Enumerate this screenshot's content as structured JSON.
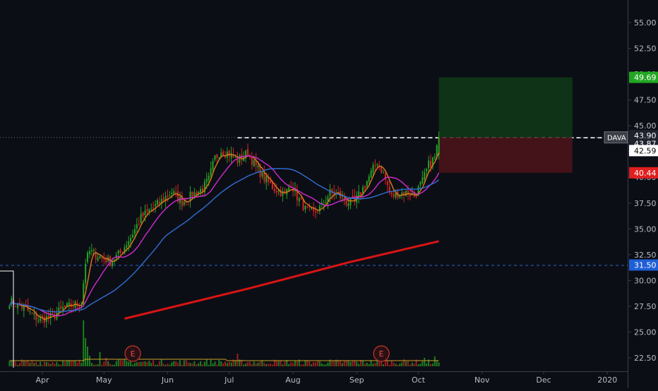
{
  "chart_data": {
    "type": "candlestick",
    "ticker": "DAVA",
    "x_axis": {
      "months": [
        {
          "label": "Apr",
          "day": 0
        },
        {
          "label": "May",
          "day": 30
        },
        {
          "label": "Jun",
          "day": 61
        },
        {
          "label": "Jul",
          "day": 91
        },
        {
          "label": "Aug",
          "day": 122
        },
        {
          "label": "Sep",
          "day": 153
        },
        {
          "label": "Oct",
          "day": 183
        },
        {
          "label": "Nov",
          "day": 214
        },
        {
          "label": "Dec",
          "day": 244
        },
        {
          "label": "2020",
          "day": 275
        }
      ]
    },
    "y_axis": {
      "ylim": [
        21.0,
        57.5
      ],
      "ticks": [
        "55.00",
        "52.50",
        "50.00",
        "47.50",
        "45.00",
        "42.50",
        "40.00",
        "37.50",
        "35.00",
        "32.50",
        "30.00",
        "27.50",
        "25.00",
        "22.50"
      ],
      "grid": false
    },
    "price_labels": [
      {
        "text": "49.69",
        "value": 49.69,
        "color": "#22a722"
      },
      {
        "text": "43.90",
        "value": 43.9,
        "color": "#1f232d"
      },
      {
        "text": "43.87",
        "value": 43.87,
        "color": "#1f232d"
      },
      {
        "text": "42.59",
        "value": 42.59,
        "color": "#ffffff"
      },
      {
        "text": "40.44",
        "value": 40.44,
        "color": "#e01f1f"
      },
      {
        "text": "31.50",
        "value": 31.5,
        "color": "#1f5fd6"
      }
    ],
    "ticker_tag": "DAVA",
    "position_box": {
      "entry": 43.87,
      "target": 49.69,
      "stop": 40.44,
      "start_day": 193,
      "end_day": 258
    },
    "horizontal_levels": [
      {
        "value": 43.87,
        "style": "dashed",
        "color": "#ffffff",
        "start_day": 95
      },
      {
        "value": 31.5,
        "style": "dashed",
        "color": "#2a62d0"
      },
      {
        "value": 43.9,
        "style": "dotted",
        "color": "#6b6f78"
      }
    ],
    "earnings_markers": [
      {
        "day": 44,
        "text": "E"
      },
      {
        "day": 165,
        "text": "E"
      }
    ],
    "earnings_label": "E",
    "series": [
      {
        "kind": "ma",
        "color": "#d97a1c",
        "ma_period": 5
      },
      {
        "kind": "ma",
        "color": "#d22bd2",
        "ma_period": 15
      },
      {
        "kind": "ma",
        "color": "#2e6fd6",
        "ma_period": 40
      },
      {
        "kind": "line",
        "color": "#d91414",
        "points": [
          [
            40,
            26.3
          ],
          [
            100,
            29.2
          ],
          [
            150,
            31.8
          ],
          [
            193,
            33.8
          ]
        ]
      }
    ],
    "anchors": [
      [
        -16,
        28.0
      ],
      [
        -8,
        27.2
      ],
      [
        -2,
        26.2
      ],
      [
        5,
        26.5
      ],
      [
        10,
        27.3
      ],
      [
        15,
        27.6
      ],
      [
        19,
        27.8
      ],
      [
        21,
        31.8
      ],
      [
        23,
        32.8
      ],
      [
        28,
        32.3
      ],
      [
        33,
        31.8
      ],
      [
        38,
        32.7
      ],
      [
        43,
        34.2
      ],
      [
        48,
        36.1
      ],
      [
        53,
        36.9
      ],
      [
        58,
        37.7
      ],
      [
        63,
        38.6
      ],
      [
        68,
        37.6
      ],
      [
        73,
        38.3
      ],
      [
        78,
        38.9
      ],
      [
        81,
        39.8
      ],
      [
        84,
        41.9
      ],
      [
        87,
        42.6
      ],
      [
        91,
        42.3
      ],
      [
        95,
        41.6
      ],
      [
        100,
        42.4
      ],
      [
        103,
        41.3
      ],
      [
        108,
        39.9
      ],
      [
        113,
        38.9
      ],
      [
        118,
        38.3
      ],
      [
        121,
        39.4
      ],
      [
        124,
        38.1
      ],
      [
        128,
        36.9
      ],
      [
        132,
        36.5
      ],
      [
        136,
        37.2
      ],
      [
        140,
        38.5
      ],
      [
        144,
        38.3
      ],
      [
        148,
        37.6
      ],
      [
        152,
        37.6
      ],
      [
        156,
        38.9
      ],
      [
        160,
        40.4
      ],
      [
        163,
        41.6
      ],
      [
        166,
        40.3
      ],
      [
        170,
        38.1
      ],
      [
        174,
        38.5
      ],
      [
        178,
        38.5
      ],
      [
        181,
        38.2
      ],
      [
        185,
        39.6
      ],
      [
        188,
        41.2
      ],
      [
        191,
        41.9
      ],
      [
        193,
        43.9
      ]
    ]
  }
}
